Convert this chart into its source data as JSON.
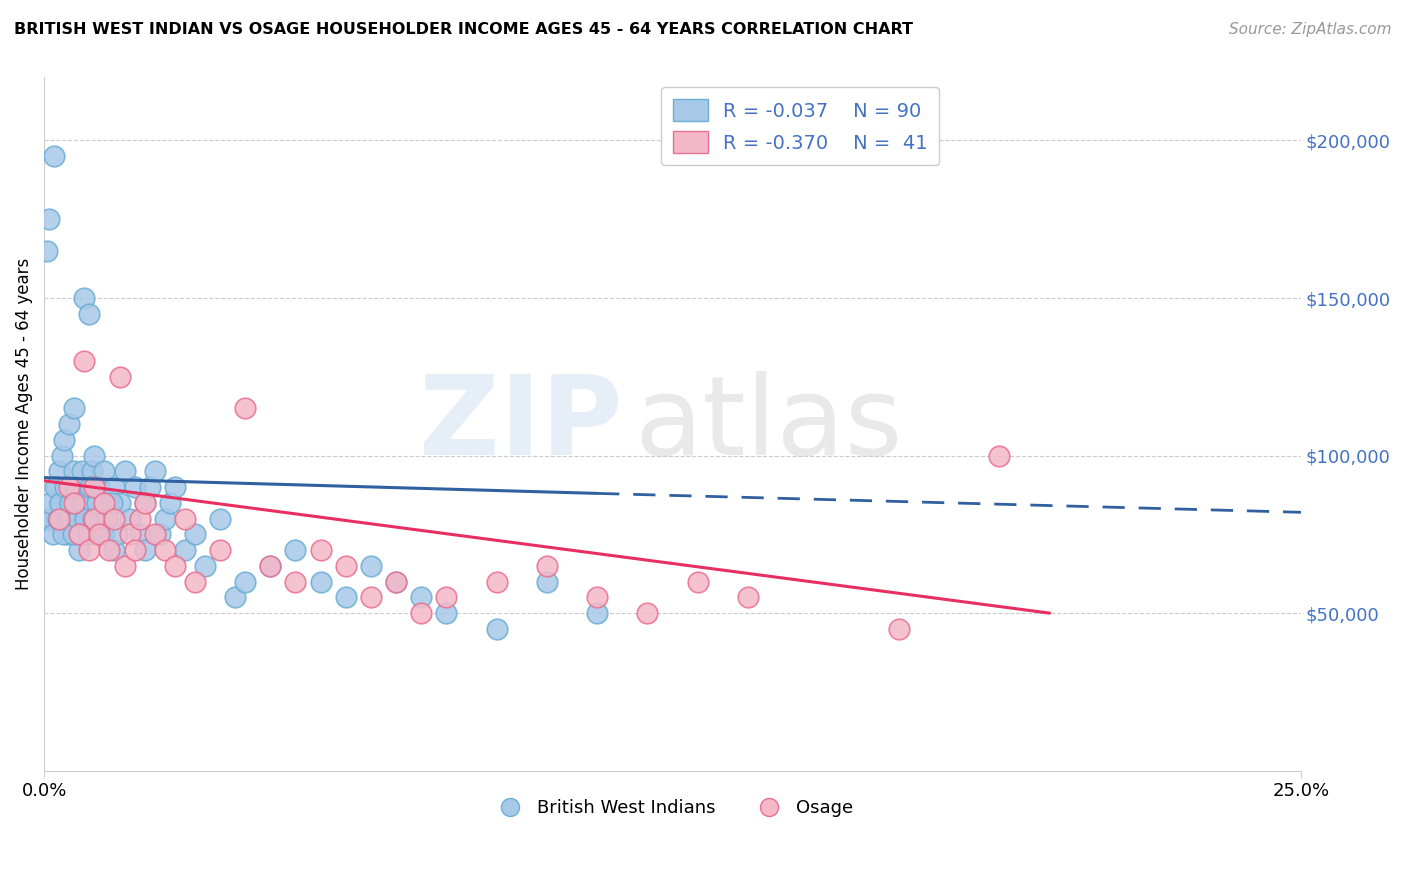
{
  "title": "BRITISH WEST INDIAN VS OSAGE HOUSEHOLDER INCOME AGES 45 - 64 YEARS CORRELATION CHART",
  "source": "Source: ZipAtlas.com",
  "ylabel": "Householder Income Ages 45 - 64 years",
  "y_tick_values": [
    50000,
    100000,
    150000,
    200000
  ],
  "xlim": [
    0.0,
    25.0
  ],
  "ylim": [
    0,
    220000
  ],
  "blue_color": "#a8c8e8",
  "blue_edge_color": "#6baed6",
  "pink_color": "#f4b8c8",
  "pink_edge_color": "#e87090",
  "blue_line_color": "#3060a0",
  "pink_line_color": "#e83060",
  "right_label_color": "#4472c4",
  "legend_r1": "R = -0.037",
  "legend_n1": "N = 90",
  "legend_r2": "R = -0.370",
  "legend_n2": "N =  41",
  "blue_x": [
    0.1,
    0.15,
    0.2,
    0.25,
    0.3,
    0.3,
    0.35,
    0.4,
    0.4,
    0.45,
    0.5,
    0.5,
    0.55,
    0.6,
    0.6,
    0.65,
    0.7,
    0.7,
    0.75,
    0.8,
    0.8,
    0.85,
    0.9,
    0.9,
    0.95,
    1.0,
    1.0,
    1.0,
    1.1,
    1.1,
    1.2,
    1.2,
    1.3,
    1.4,
    1.4,
    1.5,
    1.6,
    1.7,
    1.8,
    1.9,
    2.0,
    2.0,
    2.1,
    2.2,
    2.3,
    2.4,
    2.5,
    2.6,
    2.8,
    3.0,
    3.2,
    3.5,
    3.8,
    4.0,
    4.5,
    5.0,
    5.5,
    6.0,
    6.5,
    7.0,
    7.5,
    8.0,
    9.0,
    10.0,
    11.0,
    0.05,
    0.08,
    0.12,
    0.18,
    0.22,
    0.28,
    0.32,
    0.38,
    0.42,
    0.48,
    0.52,
    0.58,
    0.62,
    0.68,
    0.72,
    0.78,
    0.82,
    0.88,
    0.92,
    0.98,
    1.05,
    1.15,
    1.25,
    1.35,
    1.45
  ],
  "blue_y": [
    175000,
    80000,
    195000,
    90000,
    85000,
    95000,
    100000,
    80000,
    105000,
    75000,
    90000,
    110000,
    85000,
    95000,
    115000,
    80000,
    90000,
    70000,
    95000,
    85000,
    150000,
    90000,
    80000,
    145000,
    95000,
    85000,
    75000,
    100000,
    90000,
    80000,
    95000,
    75000,
    85000,
    90000,
    70000,
    85000,
    95000,
    80000,
    90000,
    75000,
    85000,
    70000,
    90000,
    95000,
    75000,
    80000,
    85000,
    90000,
    70000,
    75000,
    65000,
    80000,
    55000,
    60000,
    65000,
    70000,
    60000,
    55000,
    65000,
    60000,
    55000,
    50000,
    45000,
    60000,
    50000,
    165000,
    80000,
    85000,
    75000,
    90000,
    80000,
    85000,
    75000,
    90000,
    80000,
    85000,
    75000,
    90000,
    80000,
    75000,
    85000,
    80000,
    75000,
    90000,
    80000,
    85000,
    75000,
    80000,
    85000,
    75000
  ],
  "pink_x": [
    0.3,
    0.5,
    0.6,
    0.7,
    0.8,
    0.9,
    1.0,
    1.0,
    1.1,
    1.2,
    1.3,
    1.4,
    1.5,
    1.6,
    1.7,
    1.8,
    1.9,
    2.0,
    2.2,
    2.4,
    2.6,
    2.8,
    3.0,
    3.5,
    4.0,
    4.5,
    5.0,
    5.5,
    6.0,
    6.5,
    7.0,
    7.5,
    8.0,
    9.0,
    10.0,
    11.0,
    12.0,
    13.0,
    14.0,
    17.0,
    19.0
  ],
  "pink_y": [
    80000,
    90000,
    85000,
    75000,
    130000,
    70000,
    80000,
    90000,
    75000,
    85000,
    70000,
    80000,
    125000,
    65000,
    75000,
    70000,
    80000,
    85000,
    75000,
    70000,
    65000,
    80000,
    60000,
    70000,
    115000,
    65000,
    60000,
    70000,
    65000,
    55000,
    60000,
    50000,
    55000,
    60000,
    65000,
    55000,
    50000,
    60000,
    55000,
    45000,
    100000
  ],
  "blue_trend_x0": 0.0,
  "blue_trend_y0": 93000,
  "blue_trend_x1": 11.0,
  "blue_trend_y1": 88000,
  "blue_dash_x0": 11.0,
  "blue_dash_y0": 88000,
  "blue_dash_x1": 25.0,
  "blue_dash_y1": 82000,
  "pink_trend_x0": 0.0,
  "pink_trend_y0": 92000,
  "pink_trend_x1": 20.0,
  "pink_trend_y1": 50000
}
